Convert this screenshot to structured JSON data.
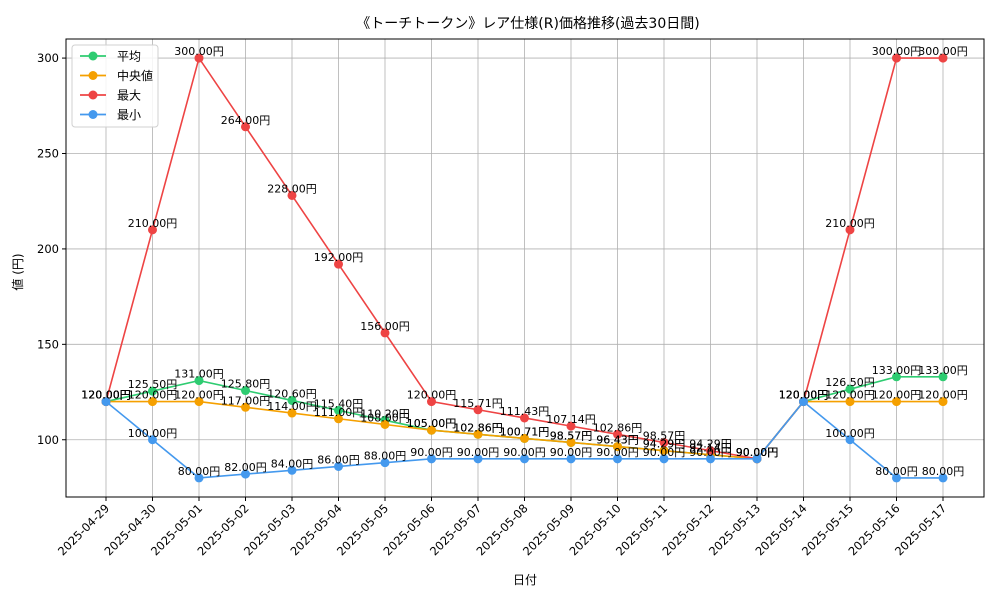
{
  "chart_data": {
    "type": "line",
    "title": "《トーチトークン》レア仕様(R)価格推移(過去30日間)",
    "xlabel": "日付",
    "ylabel": "値 (円)",
    "ylim": [
      70,
      310
    ],
    "yticks": [
      100,
      150,
      200,
      250,
      300
    ],
    "grid": true,
    "legend_position": "top-left",
    "value_suffix": "円",
    "categories": [
      "2025-04-29",
      "2025-04-30",
      "2025-05-01",
      "2025-05-02",
      "2025-05-03",
      "2025-05-04",
      "2025-05-05",
      "2025-05-06",
      "2025-05-07",
      "2025-05-08",
      "2025-05-09",
      "2025-05-10",
      "2025-05-11",
      "2025-05-12",
      "2025-05-13",
      "2025-05-14",
      "2025-05-15",
      "2025-05-16",
      "2025-05-17"
    ],
    "series": [
      {
        "name": "平均",
        "color": "#2ecc71",
        "values": [
          120.0,
          125.5,
          131.0,
          125.8,
          120.6,
          115.4,
          110.2,
          105.0,
          102.86,
          100.71,
          98.57,
          96.43,
          94.29,
          92.14,
          90.0,
          120.0,
          126.5,
          133.0,
          133.0
        ]
      },
      {
        "name": "中央値",
        "color": "#f5a000",
        "values": [
          120.0,
          120.0,
          120.0,
          117.0,
          114.0,
          111.0,
          108.0,
          105.0,
          102.86,
          100.71,
          98.57,
          96.43,
          94.29,
          92.14,
          90.0,
          120.0,
          120.0,
          120.0,
          120.0
        ]
      },
      {
        "name": "最大",
        "color": "#ee4444",
        "values": [
          120.0,
          210.0,
          300.0,
          264.0,
          228.0,
          192.0,
          156.0,
          120.0,
          115.71,
          111.43,
          107.14,
          102.86,
          98.57,
          94.29,
          90.0,
          120.0,
          210.0,
          300.0,
          300.0
        ]
      },
      {
        "name": "最小",
        "color": "#4499ee",
        "values": [
          120.0,
          100.0,
          80.0,
          82.0,
          84.0,
          86.0,
          88.0,
          90.0,
          90.0,
          90.0,
          90.0,
          90.0,
          90.0,
          90.0,
          90.0,
          120.0,
          100.0,
          80.0,
          80.0
        ]
      }
    ]
  }
}
